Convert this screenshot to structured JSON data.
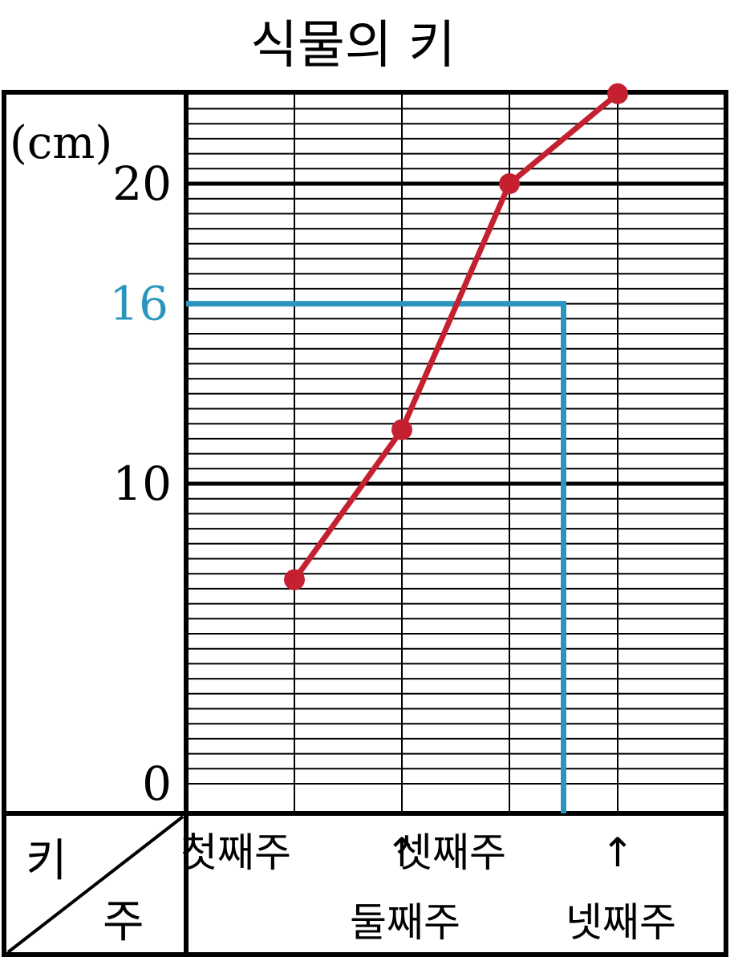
{
  "chart_data": {
    "type": "line",
    "title": "식물의 키",
    "unit": "(cm)",
    "row_header": "키",
    "col_header": "주",
    "categories": [
      "첫째주",
      "둘째주",
      "셋째주",
      "넷째주"
    ],
    "x_marks": [
      "↑",
      "↑"
    ],
    "y_ticks": [
      0,
      10,
      20
    ],
    "ylim": [
      0,
      23
    ],
    "values": [
      6.8,
      11.8,
      20,
      23
    ],
    "line_color": "#c42030",
    "guide": {
      "value": 16,
      "label": "16",
      "color": "#2b96bd",
      "x_position": 2.5
    },
    "grid": true
  }
}
